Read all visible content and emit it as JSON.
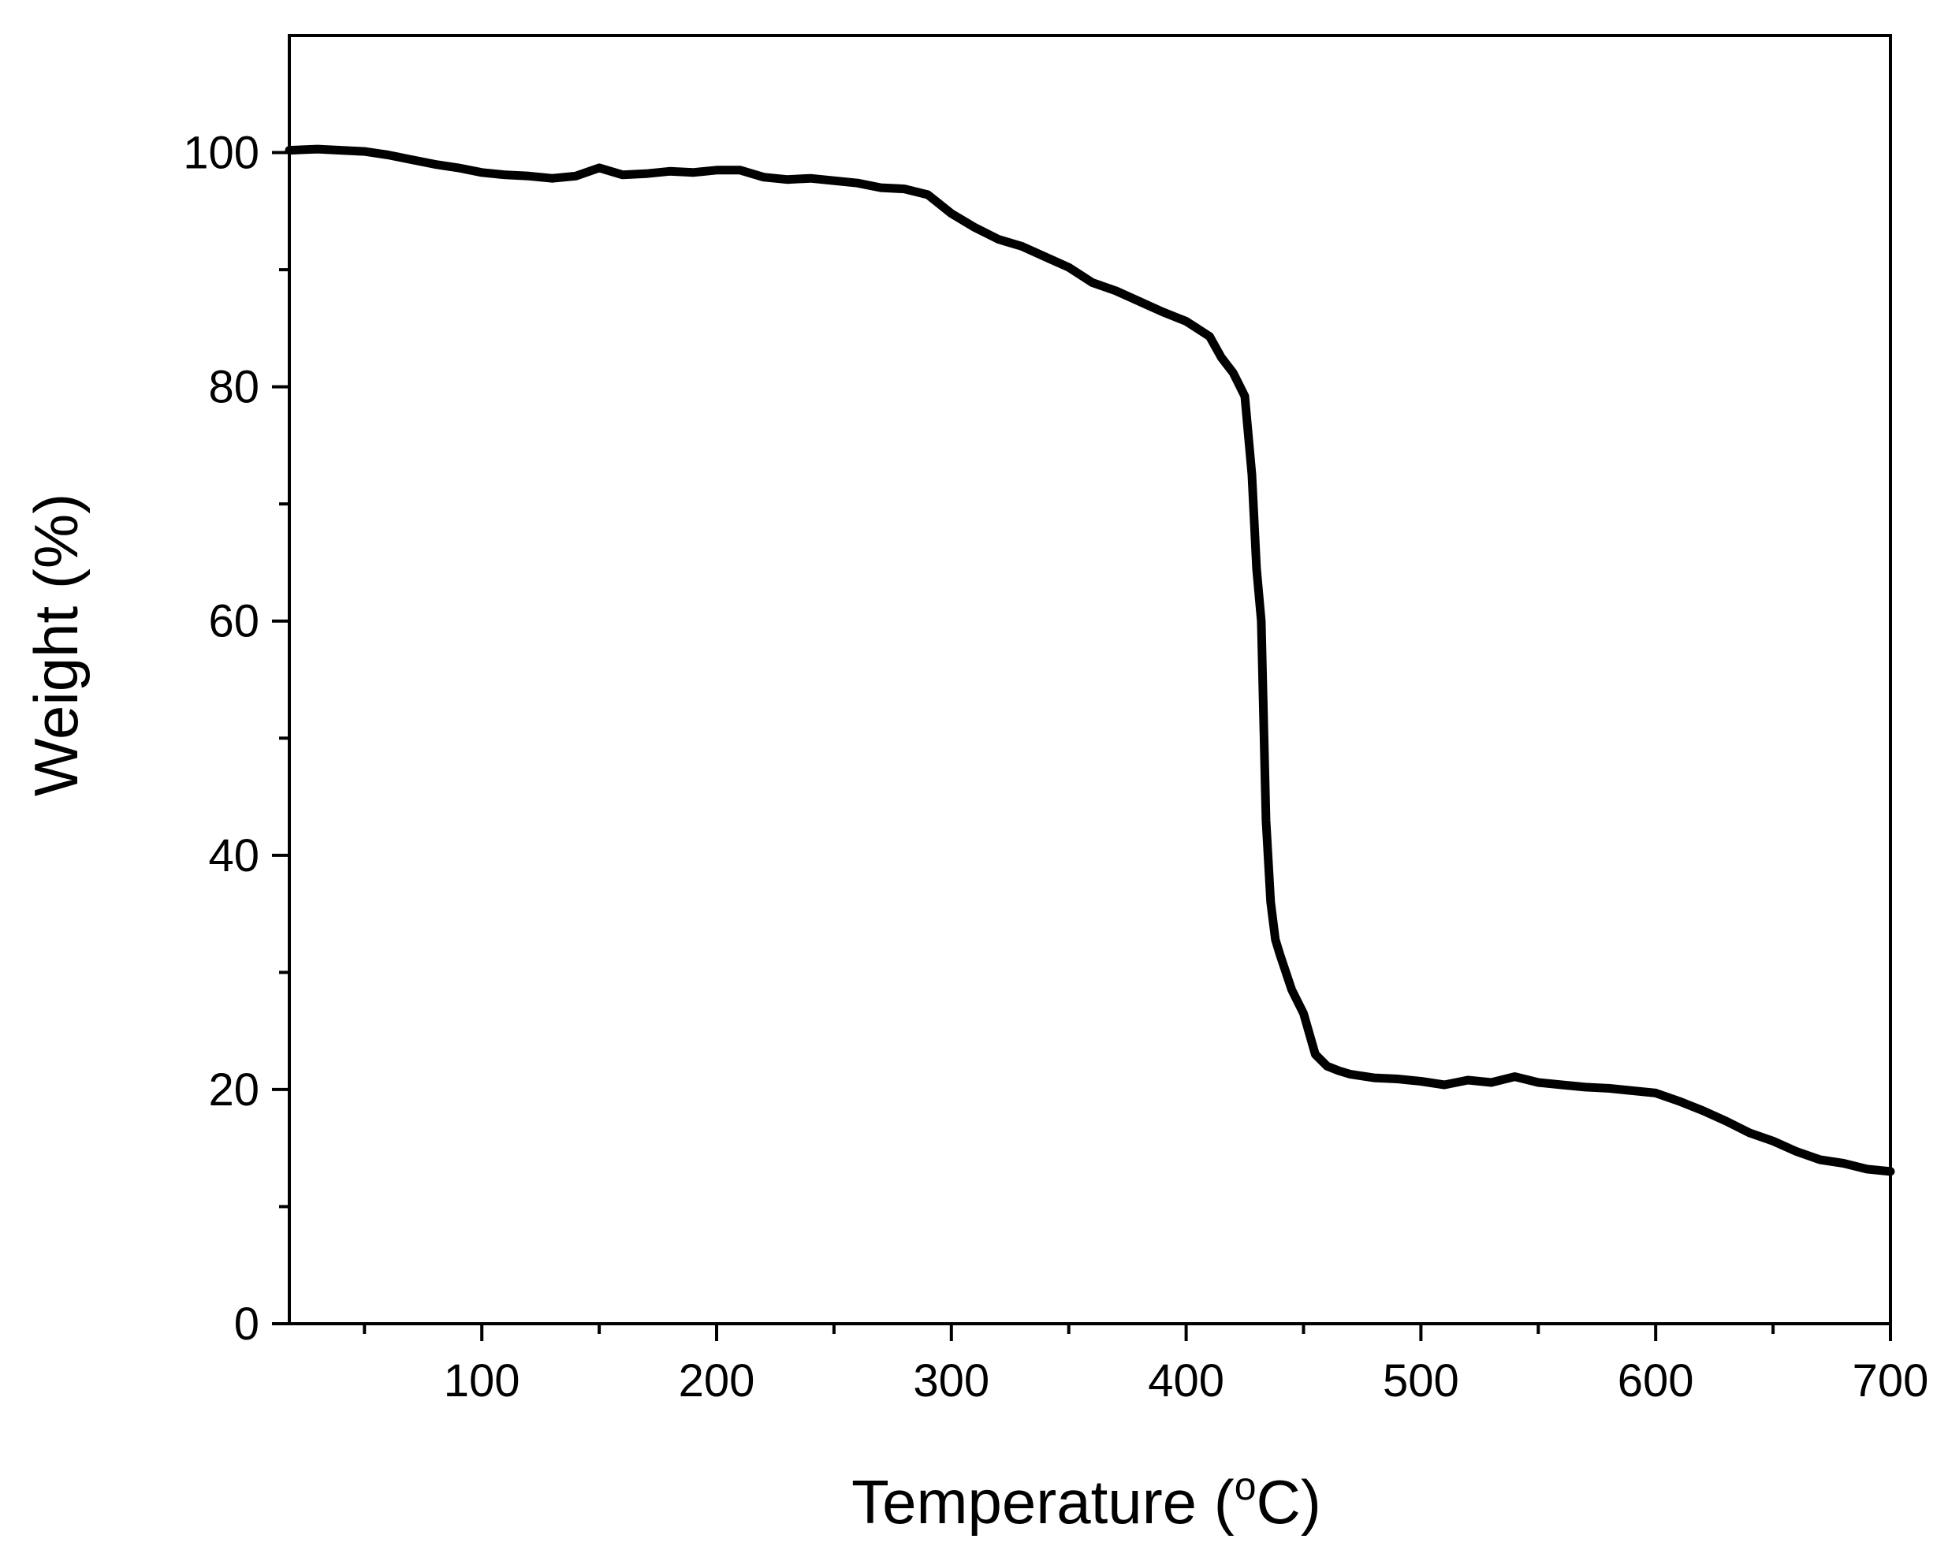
{
  "chart_data": {
    "type": "line",
    "title": "",
    "xlabel_main": "Temperature (",
    "xlabel_sup": "o",
    "xlabel_end": "C)",
    "ylabel": "Weight (%)",
    "xlim": [
      18,
      700
    ],
    "ylim": [
      0,
      110
    ],
    "x_major_ticks": [
      100,
      200,
      300,
      400,
      500,
      600,
      700
    ],
    "x_minor_ticks": [
      50,
      150,
      250,
      350,
      450,
      550,
      650
    ],
    "y_major_ticks": [
      0,
      20,
      40,
      60,
      80,
      100
    ],
    "y_minor_ticks": [
      10,
      30,
      50,
      70,
      90
    ],
    "x_tick_labels": [
      "100",
      "200",
      "300",
      "400",
      "500",
      "600",
      "700"
    ],
    "y_tick_labels": [
      "0",
      "20",
      "40",
      "60",
      "80",
      "100"
    ],
    "grid": false,
    "legend": "none",
    "series": [
      {
        "color": "#000000",
        "x": [
          18,
          30,
          40,
          50,
          60,
          70,
          80,
          90,
          100,
          110,
          120,
          130,
          140,
          150,
          160,
          170,
          180,
          190,
          200,
          210,
          220,
          230,
          240,
          250,
          260,
          270,
          280,
          290,
          300,
          310,
          320,
          330,
          340,
          350,
          360,
          370,
          380,
          390,
          400,
          410,
          415,
          420,
          425,
          428,
          430,
          432,
          434,
          436,
          438,
          440,
          445,
          450,
          455,
          460,
          465,
          470,
          480,
          490,
          500,
          510,
          520,
          530,
          540,
          550,
          560,
          570,
          580,
          590,
          600,
          610,
          620,
          630,
          640,
          650,
          660,
          670,
          680,
          690,
          700
        ],
        "y": [
          100.2,
          100.3,
          100.2,
          100.1,
          99.8,
          99.4,
          99.0,
          98.7,
          98.3,
          98.1,
          98.0,
          97.8,
          98.0,
          98.7,
          98.1,
          98.2,
          98.4,
          98.3,
          98.5,
          98.5,
          97.9,
          97.7,
          97.8,
          97.6,
          97.4,
          97.0,
          96.9,
          96.4,
          94.8,
          93.6,
          92.6,
          92.0,
          91.1,
          90.2,
          88.9,
          88.2,
          87.3,
          86.4,
          85.6,
          84.3,
          82.5,
          81.2,
          79.2,
          72.5,
          64.5,
          60.0,
          43.0,
          36.0,
          32.8,
          31.5,
          28.5,
          26.5,
          23.0,
          22.0,
          21.6,
          21.3,
          21.0,
          20.9,
          20.7,
          20.4,
          20.8,
          20.6,
          21.1,
          20.6,
          20.4,
          20.2,
          20.1,
          19.9,
          19.7,
          19.0,
          18.2,
          17.3,
          16.3,
          15.6,
          14.7,
          14.0,
          13.7,
          13.2,
          13.0
        ]
      }
    ]
  }
}
